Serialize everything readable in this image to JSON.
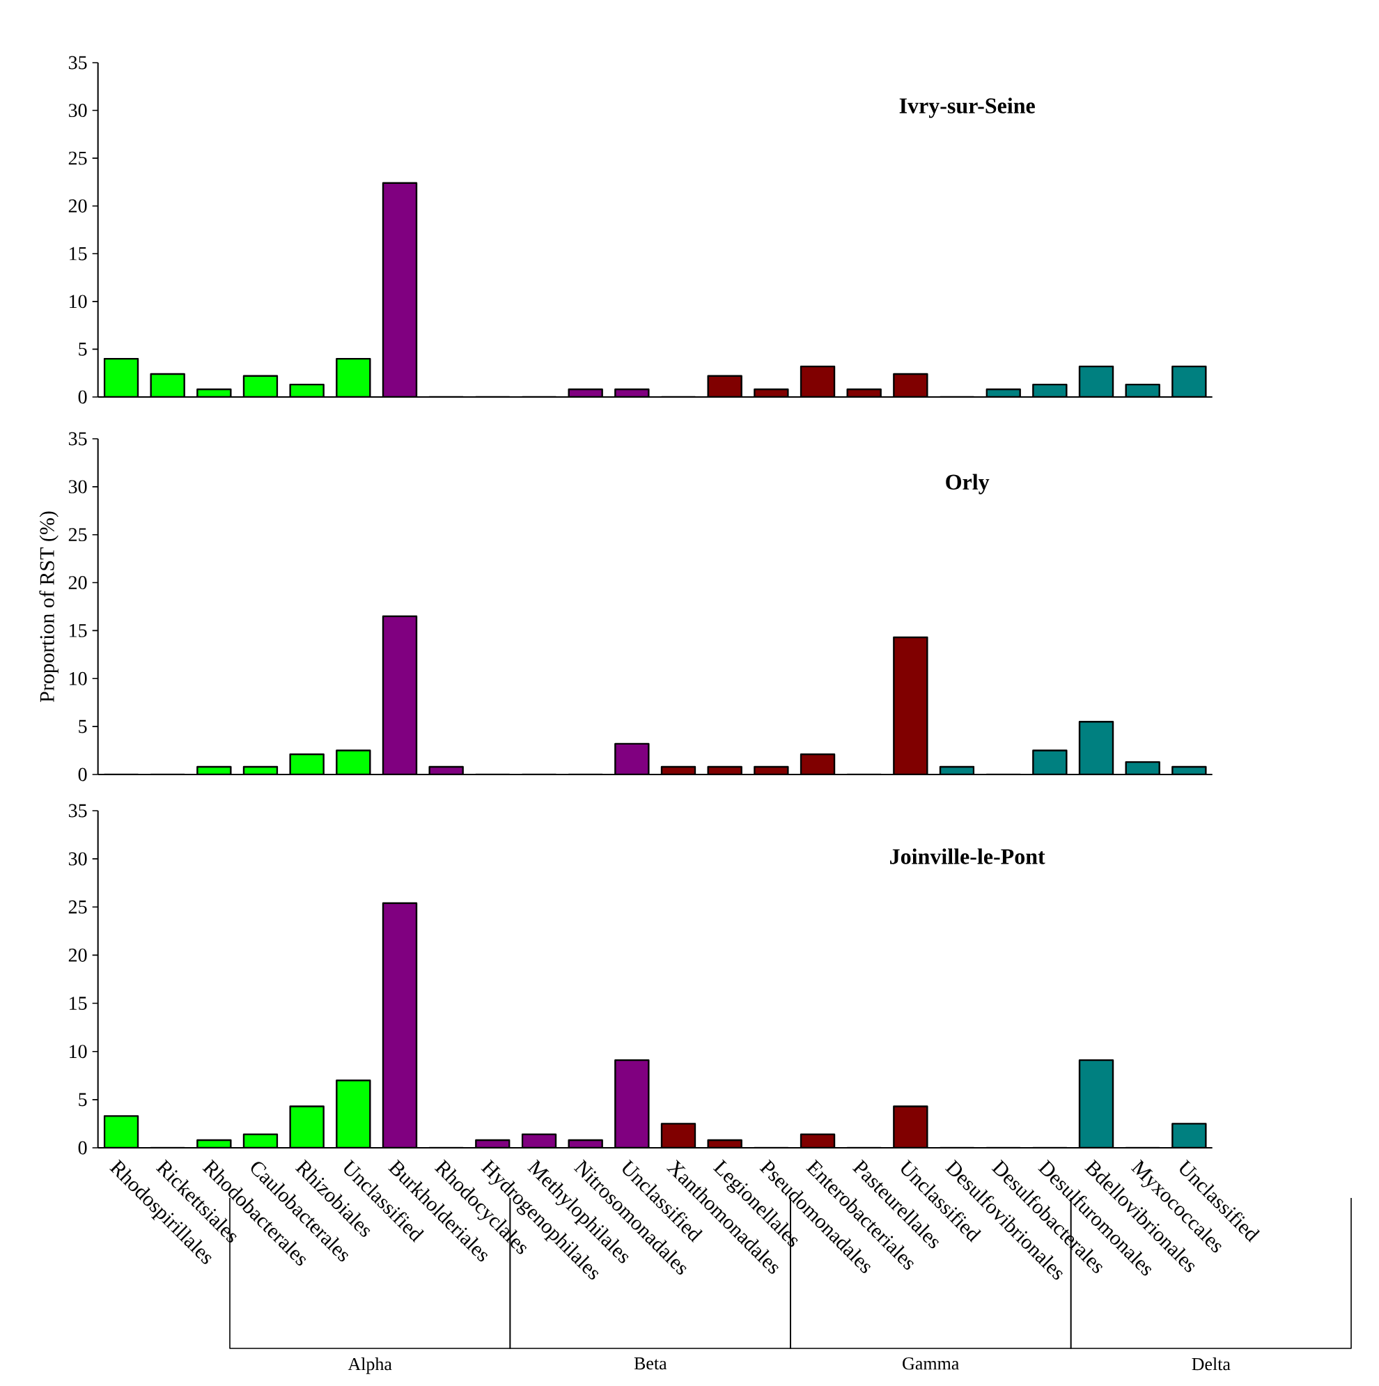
{
  "chart_data": [
    {
      "type": "bar",
      "title": "Ivry-sur-Seine",
      "categories": [
        null,
        null,
        null,
        null,
        null,
        null,
        null,
        null,
        null,
        null,
        null,
        null,
        null,
        null,
        null,
        null,
        null,
        null,
        null,
        null,
        null,
        null,
        null,
        null
      ],
      "values": [
        4.0,
        2.4,
        0.8,
        2.2,
        1.3,
        4.0,
        22.4,
        0,
        0,
        0,
        0.8,
        0.8,
        0,
        2.2,
        0.8,
        3.2,
        0.8,
        2.4,
        0,
        0.8,
        1.3,
        3.2,
        1.3,
        3.2
      ],
      "colors": [
        "#00ff00",
        "#00ff00",
        "#00ff00",
        "#00ff00",
        "#00ff00",
        "#00ff00",
        "#800080",
        "#800080",
        "#800080",
        "#800080",
        "#800080",
        "#800080",
        "#800000",
        "#800000",
        "#800000",
        "#800000",
        "#800000",
        "#800000",
        "#008080",
        "#008080",
        "#008080",
        "#008080",
        "#008080",
        "#008080"
      ],
      "ylim": [
        0,
        35
      ],
      "yticks": [
        0,
        5,
        10,
        15,
        20,
        25,
        30,
        35
      ],
      "tick_labels": "y"
    },
    {
      "type": "bar",
      "title": "Orly",
      "ylabel": "Proportion of RST (%)",
      "categories": [
        null,
        null,
        null,
        null,
        null,
        null,
        null,
        null,
        null,
        null,
        null,
        null,
        null,
        null,
        null,
        null,
        null,
        null,
        null,
        null,
        null,
        null,
        null,
        null
      ],
      "values": [
        0,
        0,
        0.8,
        0.8,
        2.1,
        2.5,
        16.5,
        0.8,
        0,
        0,
        0,
        3.2,
        0.8,
        0.8,
        0.8,
        2.1,
        0,
        14.3,
        0.8,
        0,
        2.5,
        5.5,
        1.3,
        0.8
      ],
      "colors": [
        "#00ff00",
        "#00ff00",
        "#00ff00",
        "#00ff00",
        "#00ff00",
        "#00ff00",
        "#800080",
        "#800080",
        "#800080",
        "#800080",
        "#800080",
        "#800080",
        "#800000",
        "#800000",
        "#800000",
        "#800000",
        "#800000",
        "#800000",
        "#008080",
        "#008080",
        "#008080",
        "#008080",
        "#008080",
        "#008080"
      ],
      "ylim": [
        0,
        35
      ],
      "yticks": [
        0,
        5,
        10,
        15,
        20,
        25,
        30,
        35
      ],
      "tick_labels": "y"
    },
    {
      "type": "bar",
      "title": "Joinville-le-Pont",
      "categories": [
        "Rhodospirillales",
        "Rickettsiales",
        "Rhodobacterales",
        "Caulobacterales",
        "Rhizobiales",
        "Unclassified",
        "Burkholderiales",
        "Rhodocyclales",
        "Hydrogenophilales",
        "Methylophilales",
        "Nitrosomonadales",
        "Unclassified",
        "Xanthomonadales",
        "Legionellales",
        "Pseudomonadales",
        "Enterobacteriales",
        "Pasteurellales",
        "Unclassified",
        "Desulfovibrionales",
        "Desulfobacterales",
        "Desulfuromonales",
        "Bdellovibrionales",
        "Myxococcales",
        "Unclassified"
      ],
      "values": [
        3.3,
        0,
        0.8,
        1.4,
        4.3,
        7.0,
        25.4,
        0,
        0.8,
        1.4,
        0.8,
        9.1,
        2.5,
        0.8,
        0,
        1.4,
        0,
        4.3,
        0,
        0,
        0,
        9.1,
        0,
        2.5
      ],
      "colors": [
        "#00ff00",
        "#00ff00",
        "#00ff00",
        "#00ff00",
        "#00ff00",
        "#00ff00",
        "#800080",
        "#800080",
        "#800080",
        "#800080",
        "#800080",
        "#800080",
        "#800000",
        "#800000",
        "#800000",
        "#800000",
        "#800000",
        "#800000",
        "#008080",
        "#008080",
        "#008080",
        "#008080",
        "#008080",
        "#008080"
      ],
      "ylim": [
        0,
        35
      ],
      "yticks": [
        0,
        5,
        10,
        15,
        20,
        25,
        30,
        35
      ],
      "annotations": [
        "Alpha",
        "Beta",
        "Gamma",
        "Delta"
      ]
    }
  ]
}
